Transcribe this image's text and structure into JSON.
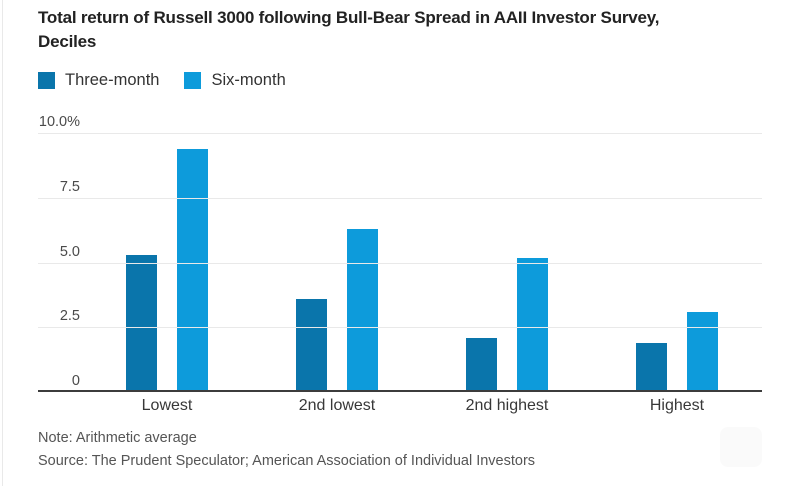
{
  "title": {
    "line1": "Total return of Russell 3000 following Bull-Bear Spread in AAII Investor Survey,",
    "line2": "Deciles"
  },
  "notes": {
    "note": "Note: Arithmetic average",
    "source": "Source: The Prudent Speculator; American Association of Individual Investors"
  },
  "colors": {
    "three_month": "#0a75ab",
    "six_month": "#0d9bdb",
    "gridline": "#e9e9e9",
    "axis_baseline": "#3c3c3c",
    "title_text": "#222222",
    "tick_text": "#4a4a4a",
    "note_text": "#555555"
  },
  "chart_data": {
    "type": "bar",
    "title": "Total return of Russell 3000 following Bull-Bear Spread in AAII Investor Survey, Deciles",
    "categories": [
      "Lowest",
      "2nd lowest",
      "2nd highest",
      "Highest"
    ],
    "series": [
      {
        "name": "Three-month",
        "color": "#0a75ab",
        "values": [
          5.2,
          3.5,
          2.0,
          1.8
        ]
      },
      {
        "name": "Six-month",
        "color": "#0d9bdb",
        "values": [
          9.3,
          6.2,
          5.1,
          3.0
        ]
      }
    ],
    "xlabel": "",
    "ylabel": "",
    "ylim": [
      0,
      10
    ],
    "yticks": [
      {
        "value": 10,
        "label": "10.0%"
      },
      {
        "value": 7.5,
        "label": "7.5"
      },
      {
        "value": 5,
        "label": "5.0"
      },
      {
        "value": 2.5,
        "label": "2.5"
      },
      {
        "value": 0,
        "label": "0"
      }
    ],
    "grid": true,
    "legend_position": "top-left",
    "note": "Note: Arithmetic average",
    "source": "Source: The Prudent Speculator; American Association of Individual Investors"
  }
}
